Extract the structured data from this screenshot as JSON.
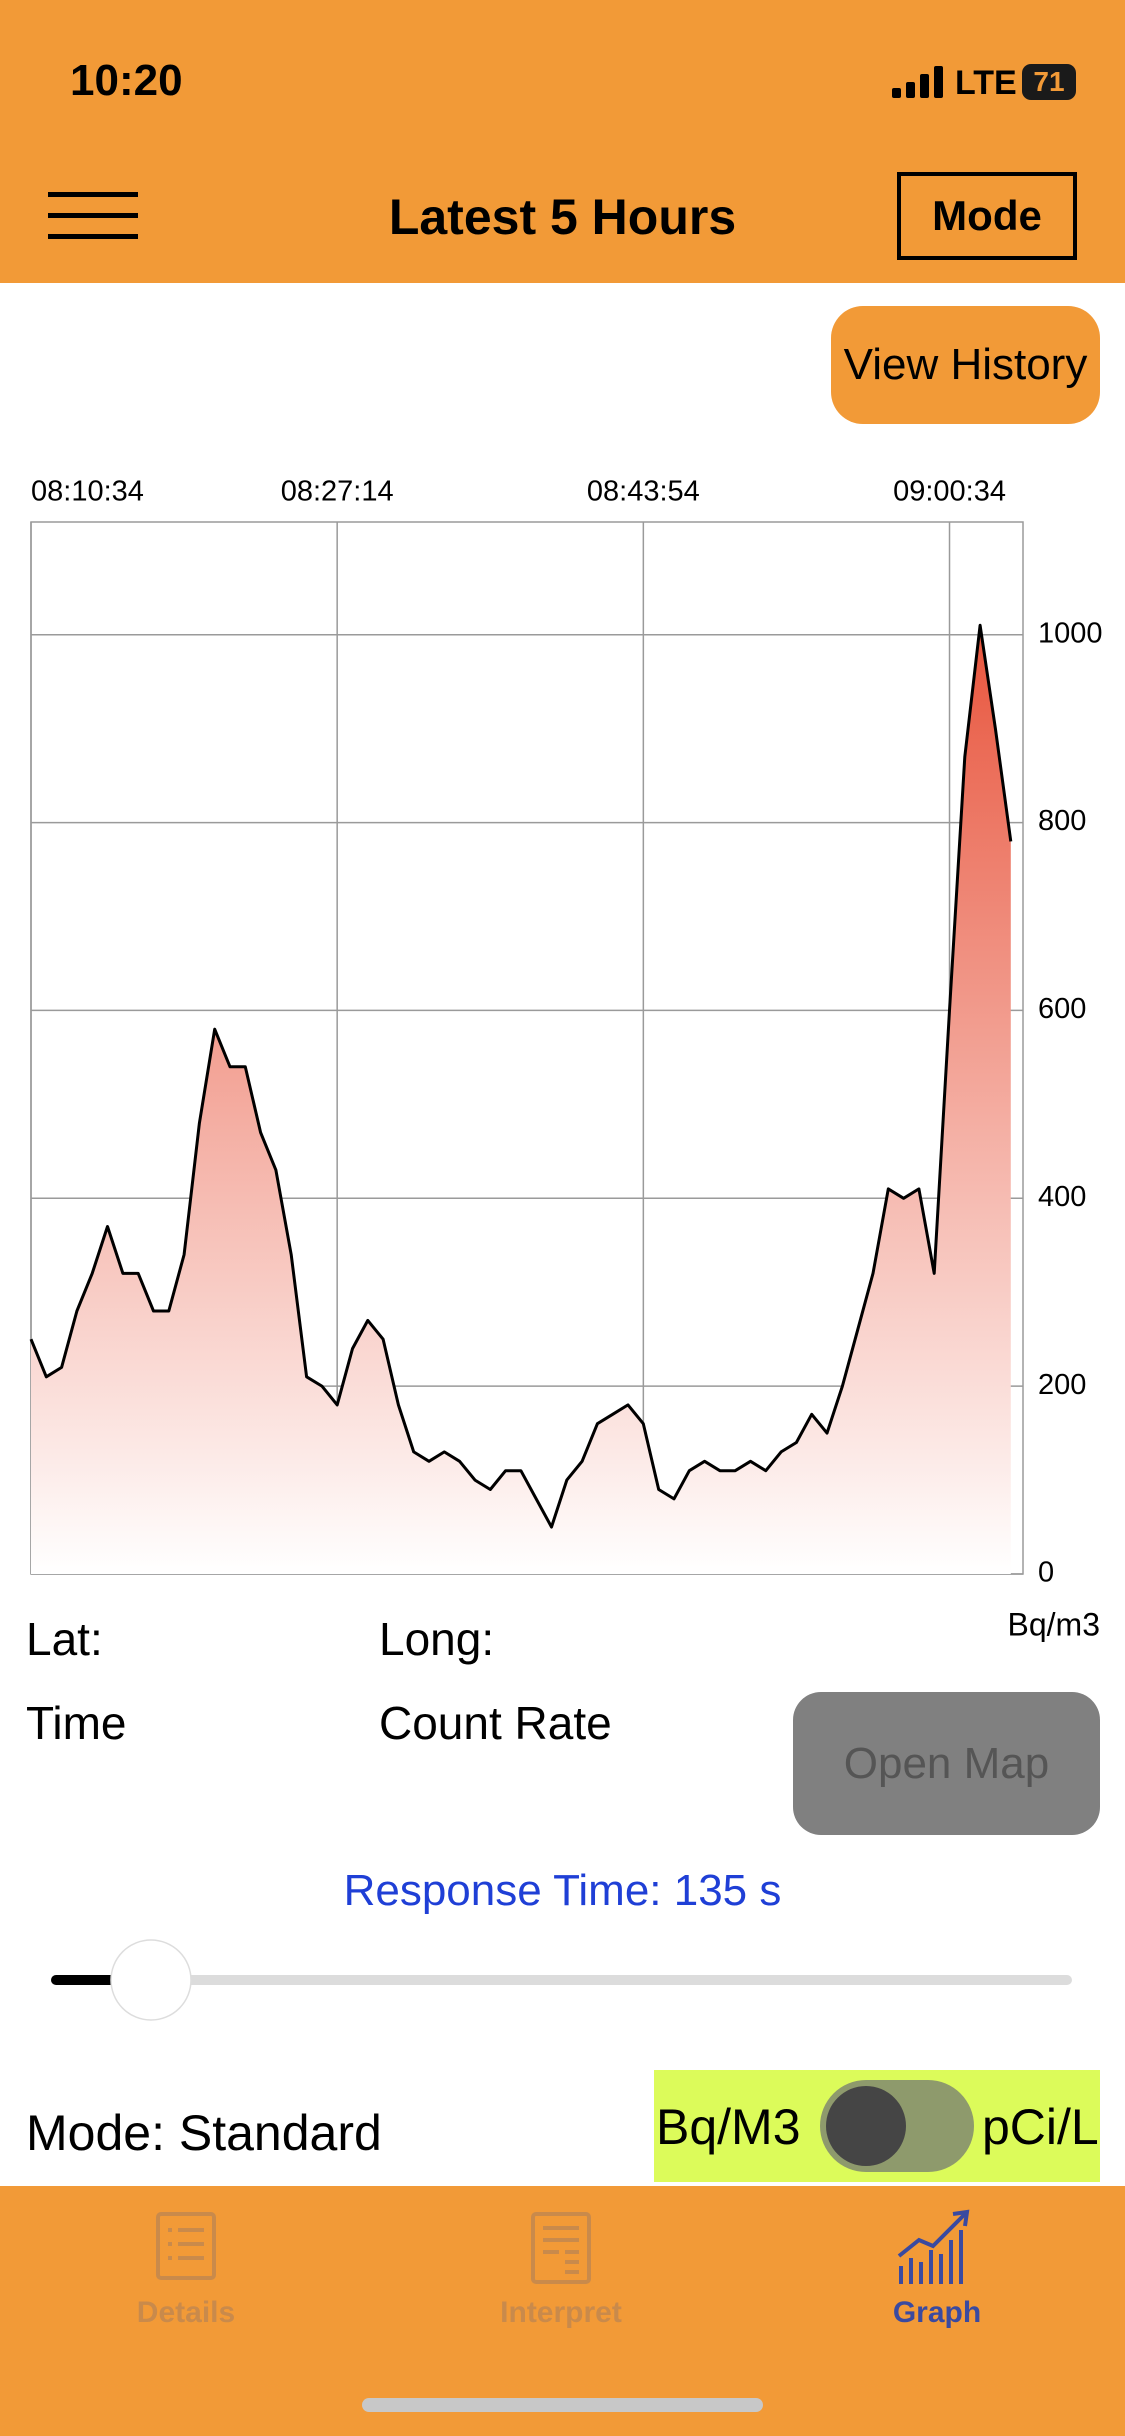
{
  "status_bar": {
    "time": "10:20",
    "network": "LTE",
    "battery": "71"
  },
  "nav": {
    "title": "Latest 5 Hours",
    "mode_button": "Mode"
  },
  "view_history": "View History",
  "chart_data": {
    "type": "line",
    "x": [
      "08:10:34",
      "08:11:24",
      "08:12:14",
      "08:13:04",
      "08:13:54",
      "08:14:44",
      "08:15:34",
      "08:16:24",
      "08:17:14",
      "08:18:04",
      "08:18:54",
      "08:19:44",
      "08:20:34",
      "08:21:24",
      "08:22:14",
      "08:23:04",
      "08:23:54",
      "08:24:44",
      "08:25:34",
      "08:26:24",
      "08:27:14",
      "08:28:04",
      "08:28:54",
      "08:29:44",
      "08:30:34",
      "08:31:24",
      "08:32:14",
      "08:33:04",
      "08:33:54",
      "08:34:44",
      "08:35:34",
      "08:36:24",
      "08:37:14",
      "08:38:04",
      "08:38:54",
      "08:39:44",
      "08:40:34",
      "08:41:24",
      "08:42:14",
      "08:43:04",
      "08:43:54",
      "08:44:44",
      "08:45:34",
      "08:46:24",
      "08:47:14",
      "08:48:04",
      "08:48:54",
      "08:49:44",
      "08:50:34",
      "08:51:24",
      "08:52:14",
      "08:53:04",
      "08:53:54",
      "08:54:44",
      "08:55:34",
      "08:56:24",
      "08:57:14",
      "08:58:04",
      "08:58:54",
      "08:59:44",
      "09:00:34",
      "09:01:24",
      "09:02:14",
      "09:03:04",
      "09:03:54"
    ],
    "series": [
      {
        "color": "#000000",
        "fill_color": "#e8553d",
        "values": [
          250,
          210,
          220,
          280,
          320,
          370,
          320,
          320,
          280,
          280,
          340,
          480,
          580,
          540,
          540,
          470,
          430,
          340,
          210,
          200,
          180,
          240,
          270,
          250,
          180,
          130,
          120,
          130,
          120,
          100,
          90,
          110,
          110,
          80,
          50,
          100,
          120,
          160,
          170,
          180,
          160,
          90,
          80,
          110,
          120,
          110,
          110,
          120,
          110,
          130,
          140,
          170,
          150,
          200,
          260,
          320,
          410,
          400,
          410,
          320,
          600,
          870,
          1010,
          900,
          780
        ]
      }
    ],
    "xlim": [
      "08:10:34",
      "09:04:34"
    ],
    "xticks": [
      "08:10:34",
      "08:27:14",
      "08:43:54",
      "09:00:34"
    ],
    "ylim": [
      0,
      1120
    ],
    "yticks": [
      0,
      200,
      400,
      600,
      800,
      1000
    ],
    "y_unit": "Bq/m3",
    "grid": true
  },
  "location": {
    "lat": "Lat:",
    "long": "Long:",
    "time": "Time",
    "count_rate": "Count Rate"
  },
  "open_map": "Open Map",
  "response_time": "Response Time: 135 s",
  "mode": "Mode: Standard",
  "unit_toggle": {
    "left": "Bq/M3",
    "right": "pCi/L"
  },
  "tabs": [
    {
      "label": "Details",
      "active": false
    },
    {
      "label": "Interpret",
      "active": false
    },
    {
      "label": "Graph",
      "active": true
    }
  ]
}
